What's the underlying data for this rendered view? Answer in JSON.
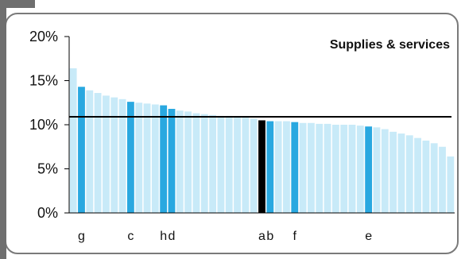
{
  "chart_data": {
    "type": "bar",
    "title": "Supplies & services",
    "xlabel": "",
    "ylabel": "",
    "ylim": [
      0,
      20
    ],
    "yticks": [
      "0%",
      "5%",
      "10%",
      "15%",
      "20%"
    ],
    "reference_line": 10.9,
    "colors": {
      "default": "#c8eaf8",
      "highlight": "#29a8e0",
      "selected": "#000000",
      "axis": "#000000"
    },
    "values": [
      16.4,
      14.3,
      13.9,
      13.6,
      13.3,
      13.1,
      12.9,
      12.6,
      12.5,
      12.4,
      12.3,
      12.2,
      11.8,
      11.6,
      11.5,
      11.3,
      11.2,
      11.1,
      11.0,
      11.0,
      10.9,
      10.8,
      10.7,
      10.5,
      10.4,
      10.4,
      10.4,
      10.3,
      10.2,
      10.2,
      10.1,
      10.1,
      10.0,
      10.0,
      10.0,
      9.9,
      9.8,
      9.7,
      9.5,
      9.2,
      9.0,
      8.8,
      8.5,
      8.2,
      7.9,
      7.5,
      6.4
    ],
    "bar_styles": [
      "default",
      "highlight",
      "default",
      "default",
      "default",
      "default",
      "default",
      "highlight",
      "default",
      "default",
      "default",
      "highlight",
      "highlight",
      "default",
      "default",
      "default",
      "default",
      "default",
      "default",
      "default",
      "default",
      "default",
      "default",
      "selected",
      "highlight",
      "default",
      "default",
      "highlight",
      "default",
      "default",
      "default",
      "default",
      "default",
      "default",
      "default",
      "default",
      "highlight",
      "default",
      "default",
      "default",
      "default",
      "default",
      "default",
      "default",
      "default",
      "default",
      "default"
    ],
    "categories": [
      "",
      "g",
      "",
      "",
      "",
      "",
      "",
      "c",
      "",
      "",
      "",
      "h",
      "d",
      "",
      "",
      "",
      "",
      "",
      "",
      "",
      "",
      "",
      "",
      "a",
      "b",
      "",
      "",
      "f",
      "",
      "",
      "",
      "",
      "",
      "",
      "",
      "",
      "e",
      "",
      "",
      "",
      "",
      "",
      "",
      "",
      "",
      "",
      ""
    ]
  }
}
